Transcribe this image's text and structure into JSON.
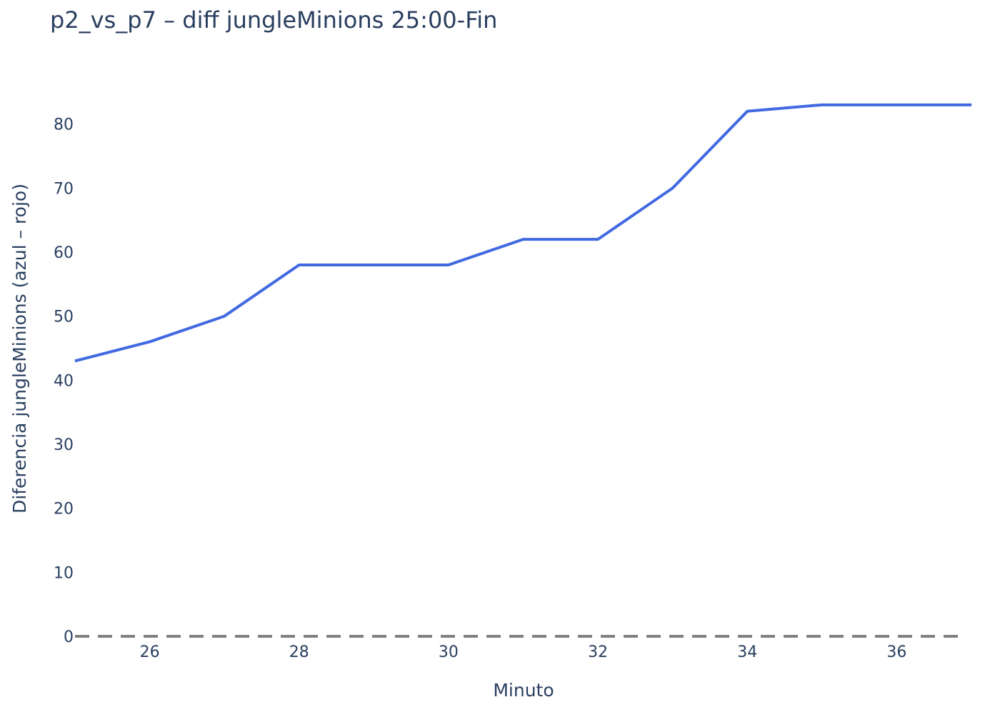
{
  "chart_data": {
    "type": "line",
    "title": "p2_vs_p7 – diff jungleMinions 25:00-Fin",
    "xlabel": "Minuto",
    "ylabel": "Diferencia jungleMinions (azul – rojo)",
    "x": [
      25,
      26,
      27,
      28,
      29,
      30,
      31,
      32,
      33,
      34,
      35,
      36,
      37
    ],
    "series": [
      {
        "values": [
          43,
          46,
          50,
          58,
          58,
          58,
          62,
          62,
          70,
          82,
          83,
          83,
          83
        ],
        "color": "#4169e1"
      }
    ],
    "xlim": [
      25,
      37
    ],
    "ylim": [
      0,
      88
    ],
    "x_ticks": [
      26,
      28,
      30,
      32,
      34,
      36
    ],
    "y_ticks": [
      0,
      10,
      20,
      30,
      40,
      50,
      60,
      70,
      80
    ],
    "reference_line": {
      "y": 0,
      "style": "dashed",
      "color": "#808080"
    },
    "grid": false,
    "legend": "none"
  }
}
